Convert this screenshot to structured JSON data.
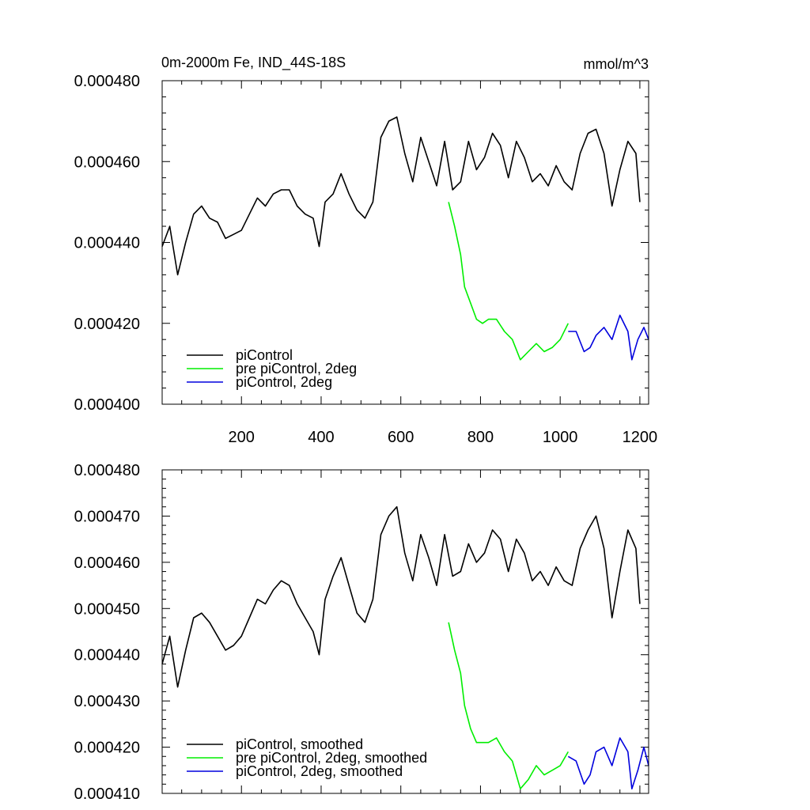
{
  "header": {
    "title": "0m-2000m Fe, IND_44S-18S",
    "units": "mmol/m^3"
  },
  "colors": {
    "piControl": "#000000",
    "pre_piControl_2deg": "#00ee00",
    "piControl_2deg": "#0000dd"
  },
  "chart_data": [
    {
      "type": "line",
      "title": "0m-2000m Fe, IND_44S-18S",
      "units": "mmol/m^3",
      "xlim": [
        1,
        1222
      ],
      "ylim": [
        0.0004,
        0.00048
      ],
      "xticks": [
        200,
        400,
        600,
        800,
        1000,
        1200
      ],
      "xtick_labels": [
        "200",
        "400",
        "600",
        "800",
        "1000",
        "1200"
      ],
      "yticks": [
        0.0004,
        0.00042,
        0.00044,
        0.00046,
        0.00048
      ],
      "ytick_labels": [
        "0.000400",
        "0.000420",
        "0.000440",
        "0.000460",
        "0.000480"
      ],
      "grid": false,
      "legend": "lower-left",
      "series": [
        {
          "name": "piControl",
          "color": "#000000",
          "x": [
            1,
            20,
            40,
            60,
            80,
            100,
            120,
            140,
            160,
            180,
            200,
            220,
            240,
            260,
            280,
            300,
            320,
            340,
            360,
            380,
            395,
            410,
            430,
            450,
            470,
            490,
            510,
            530,
            550,
            570,
            590,
            610,
            630,
            650,
            670,
            690,
            710,
            730,
            750,
            770,
            790,
            810,
            830,
            850,
            870,
            890,
            910,
            930,
            950,
            970,
            990,
            1010,
            1030,
            1050,
            1070,
            1090,
            1110,
            1130,
            1150,
            1170,
            1190,
            1200
          ],
          "y": [
            0.000439,
            0.000444,
            0.000432,
            0.00044,
            0.000447,
            0.000449,
            0.000446,
            0.000445,
            0.000441,
            0.000442,
            0.000443,
            0.000447,
            0.000451,
            0.000449,
            0.000452,
            0.000453,
            0.000453,
            0.000449,
            0.000447,
            0.000446,
            0.000439,
            0.00045,
            0.000452,
            0.000457,
            0.000452,
            0.000448,
            0.000446,
            0.00045,
            0.000466,
            0.00047,
            0.000471,
            0.000462,
            0.000455,
            0.000466,
            0.00046,
            0.000454,
            0.000465,
            0.000453,
            0.000455,
            0.000465,
            0.000458,
            0.000461,
            0.000467,
            0.000464,
            0.000456,
            0.000465,
            0.000461,
            0.000455,
            0.000457,
            0.000454,
            0.000459,
            0.000455,
            0.000453,
            0.000462,
            0.000467,
            0.000468,
            0.000462,
            0.000449,
            0.000458,
            0.000465,
            0.000462,
            0.00045
          ]
        },
        {
          "name": "pre piControl, 2deg",
          "color": "#00ee00",
          "x": [
            720,
            735,
            750,
            760,
            775,
            790,
            805,
            820,
            840,
            860,
            880,
            900,
            920,
            940,
            960,
            980,
            1000,
            1020
          ],
          "y": [
            0.00045,
            0.000444,
            0.000437,
            0.000429,
            0.000425,
            0.000421,
            0.00042,
            0.000421,
            0.000421,
            0.000418,
            0.000416,
            0.000411,
            0.000413,
            0.000415,
            0.000413,
            0.000414,
            0.000416,
            0.00042
          ]
        },
        {
          "name": "piControl, 2deg",
          "color": "#0000dd",
          "x": [
            1020,
            1040,
            1060,
            1075,
            1090,
            1110,
            1130,
            1150,
            1170,
            1180,
            1195,
            1210,
            1222
          ],
          "y": [
            0.000418,
            0.000418,
            0.000413,
            0.000414,
            0.000417,
            0.000419,
            0.000416,
            0.000422,
            0.000418,
            0.000411,
            0.000416,
            0.000419,
            0.000416
          ]
        }
      ]
    },
    {
      "type": "line",
      "xlim": [
        1,
        1222
      ],
      "ylim": [
        0.00041,
        0.00048
      ],
      "yticks": [
        0.00041,
        0.00042,
        0.00043,
        0.00044,
        0.00045,
        0.00046,
        0.00047,
        0.00048
      ],
      "ytick_labels": [
        "0.000410",
        "0.000420",
        "0.000430",
        "0.000440",
        "0.000450",
        "0.000460",
        "0.000470",
        "0.000480"
      ],
      "grid": false,
      "legend": "lower-left",
      "series": [
        {
          "name": "piControl, smoothed",
          "color": "#000000",
          "x": [
            1,
            20,
            40,
            60,
            80,
            100,
            120,
            140,
            160,
            180,
            200,
            220,
            240,
            260,
            280,
            300,
            320,
            340,
            360,
            380,
            395,
            410,
            430,
            450,
            470,
            490,
            510,
            530,
            550,
            570,
            590,
            610,
            630,
            650,
            670,
            690,
            710,
            730,
            750,
            770,
            790,
            810,
            830,
            850,
            870,
            890,
            910,
            930,
            950,
            970,
            990,
            1010,
            1030,
            1050,
            1070,
            1090,
            1110,
            1130,
            1150,
            1170,
            1190,
            1200
          ],
          "y": [
            0.000438,
            0.000444,
            0.000433,
            0.000441,
            0.000448,
            0.000449,
            0.000447,
            0.000444,
            0.000441,
            0.000442,
            0.000444,
            0.000448,
            0.000452,
            0.000451,
            0.000454,
            0.000456,
            0.000455,
            0.000451,
            0.000448,
            0.000445,
            0.00044,
            0.000452,
            0.000457,
            0.000461,
            0.000455,
            0.000449,
            0.000447,
            0.000452,
            0.000466,
            0.00047,
            0.000472,
            0.000462,
            0.000456,
            0.000466,
            0.000461,
            0.000455,
            0.000466,
            0.000457,
            0.000458,
            0.000464,
            0.00046,
            0.000462,
            0.000467,
            0.000465,
            0.000458,
            0.000465,
            0.000462,
            0.000456,
            0.000458,
            0.000455,
            0.000459,
            0.000456,
            0.000455,
            0.000463,
            0.000467,
            0.00047,
            0.000463,
            0.000448,
            0.000458,
            0.000467,
            0.000463,
            0.000451
          ]
        },
        {
          "name": "pre piControl, 2deg, smoothed",
          "color": "#00ee00",
          "x": [
            720,
            735,
            750,
            760,
            775,
            790,
            805,
            820,
            840,
            860,
            880,
            900,
            920,
            940,
            960,
            980,
            1000,
            1020
          ],
          "y": [
            0.000447,
            0.000441,
            0.000436,
            0.000429,
            0.000424,
            0.000421,
            0.000421,
            0.000421,
            0.000422,
            0.000419,
            0.000417,
            0.000411,
            0.000413,
            0.000416,
            0.000414,
            0.000415,
            0.000416,
            0.000419
          ]
        },
        {
          "name": "piControl, 2deg, smoothed",
          "color": "#0000dd",
          "x": [
            1020,
            1040,
            1060,
            1075,
            1090,
            1110,
            1130,
            1150,
            1170,
            1180,
            1195,
            1210,
            1222
          ],
          "y": [
            0.000418,
            0.000417,
            0.000412,
            0.000414,
            0.000419,
            0.00042,
            0.000416,
            0.000422,
            0.000419,
            0.000411,
            0.000415,
            0.00042,
            0.000416
          ]
        }
      ]
    }
  ]
}
